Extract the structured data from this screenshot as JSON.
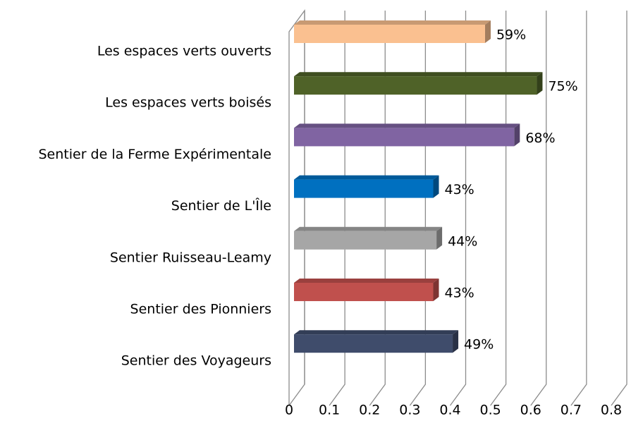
{
  "chart_data": {
    "type": "bar3d_horizontal",
    "categories": [
      "Les espaces verts ouverts",
      "Les espaces verts boisés",
      "Sentier de la Ferme Expérimentale",
      "Sentier de L'Île",
      "Sentier Ruisseau-Leamy",
      "Sentier des Pionniers",
      "Sentier des Voyageurs"
    ],
    "values": [
      0.59,
      0.75,
      0.68,
      0.43,
      0.44,
      0.43,
      0.49
    ],
    "value_labels": [
      "59%",
      "75%",
      "68%",
      "43%",
      "44%",
      "43%",
      "49%"
    ],
    "colors": [
      "#fac090",
      "#4f6228",
      "#8064a2",
      "#0070c0",
      "#a6a6a6",
      "#c0504d",
      "#3f4c6b"
    ],
    "xlim": [
      0,
      0.8
    ],
    "xticks": [
      0,
      0.1,
      0.2,
      0.3,
      0.4,
      0.5,
      0.6,
      0.7,
      0.8
    ],
    "grid": true
  }
}
